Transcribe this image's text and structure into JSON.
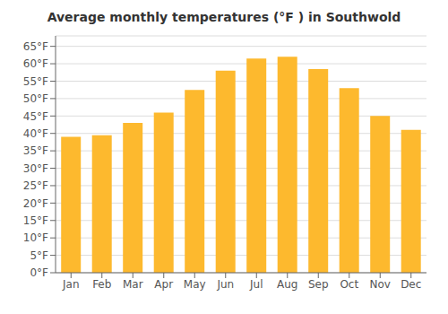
{
  "chart_data": {
    "type": "bar",
    "title": "Average monthly temperatures (°F ) in Southwold",
    "categories": [
      "Jan",
      "Feb",
      "Mar",
      "Apr",
      "May",
      "Jun",
      "Jul",
      "Aug",
      "Sep",
      "Oct",
      "Nov",
      "Dec"
    ],
    "values": [
      39,
      39.5,
      43,
      46,
      52.5,
      58,
      61.5,
      62,
      58.5,
      53,
      45,
      41
    ],
    "color": "#FDB92E",
    "ylim": [
      0,
      68
    ],
    "yticks": [
      {
        "value": 0,
        "label": "0°F"
      },
      {
        "value": 5,
        "label": "5°F"
      },
      {
        "value": 10,
        "label": "10°F"
      },
      {
        "value": 15,
        "label": "15°F"
      },
      {
        "value": 20,
        "label": "20°F"
      },
      {
        "value": 25,
        "label": "25°F"
      },
      {
        "value": 30,
        "label": "30°F"
      },
      {
        "value": 35,
        "label": "35°F"
      },
      {
        "value": 40,
        "label": "40°F"
      },
      {
        "value": 45,
        "label": "45°F"
      },
      {
        "value": 50,
        "label": "50°F"
      },
      {
        "value": 55,
        "label": "55°F"
      },
      {
        "value": 60,
        "label": "60°F"
      },
      {
        "value": 65,
        "label": "65°F"
      }
    ],
    "grid": true
  }
}
